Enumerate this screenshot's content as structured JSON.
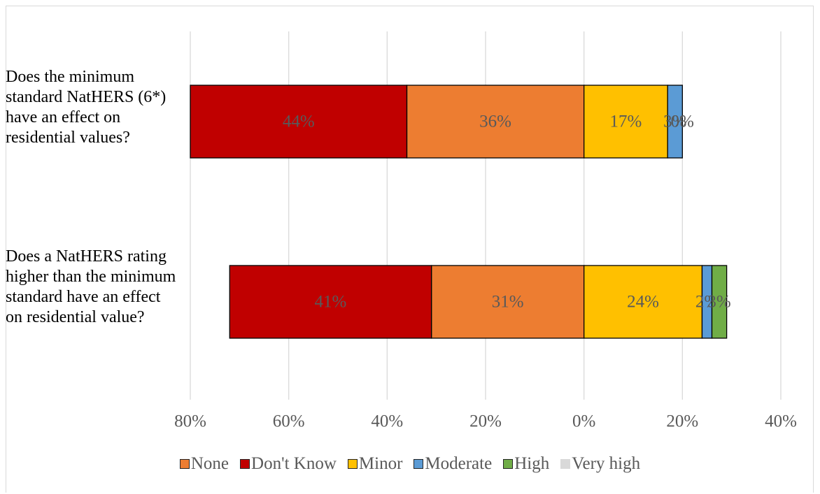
{
  "chart_data": {
    "type": "diverging-bar",
    "categories": [
      "Does the minimum standard NatHERS (6*) have an effect on residential values?",
      "Does a NatHERS rating higher than the minimum standard have an effect on residential value?"
    ],
    "series": [
      {
        "name": "None",
        "color": "#ed7d31",
        "values": [
          -36,
          -31
        ],
        "value_labels": [
          "36%",
          "31%"
        ]
      },
      {
        "name": "Don't Know",
        "color": "#c00000",
        "values": [
          -44,
          -41
        ],
        "value_labels": [
          "44%",
          "41%"
        ]
      },
      {
        "name": "Minor",
        "color": "#ffc000",
        "values": [
          17,
          24
        ],
        "value_labels": [
          "17%",
          "24%"
        ]
      },
      {
        "name": "Moderate",
        "color": "#5b9bd5",
        "values": [
          3,
          2
        ],
        "value_labels": [
          "3%",
          "2%"
        ]
      },
      {
        "name": "High",
        "color": "#70ad47",
        "values": [
          0,
          3
        ],
        "value_labels": [
          "0%",
          "3%"
        ]
      },
      {
        "name": "Very high",
        "color": "#d9d9d9",
        "values": [
          0,
          0
        ]
      }
    ],
    "xlim": [
      -80,
      40
    ],
    "xticks": [
      {
        "value": -80,
        "label": "80%"
      },
      {
        "value": -60,
        "label": "60%"
      },
      {
        "value": -40,
        "label": "40%"
      },
      {
        "value": -20,
        "label": "20%"
      },
      {
        "value": 0,
        "label": "0%"
      },
      {
        "value": 20,
        "label": "20%"
      },
      {
        "value": 40,
        "label": "40%"
      }
    ],
    "grid": true,
    "legend": "bottom"
  }
}
